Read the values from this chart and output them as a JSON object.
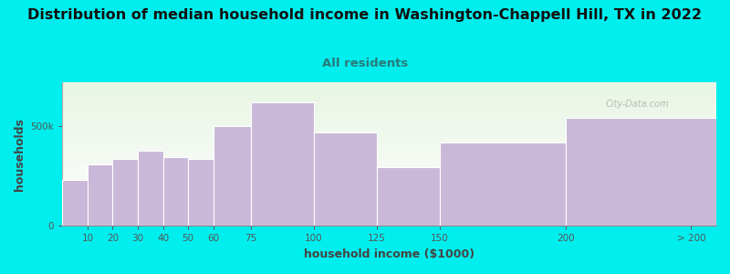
{
  "title": "Distribution of median household income in Washington-Chappell Hill, TX in 2022",
  "subtitle": "All residents",
  "xlabel": "household income ($1000)",
  "ylabel": "households",
  "background_outer": "#00EEEE",
  "background_inner_top": "#e8f5e4",
  "background_inner_bottom": "#ffffff",
  "bar_color": "#c9b8d8",
  "bar_edge_color": "#ffffff",
  "title_fontsize": 11.5,
  "title_color": "#111111",
  "subtitle_fontsize": 9.5,
  "subtitle_color": "#2a7a7a",
  "values": [
    230000,
    310000,
    335000,
    375000,
    345000,
    335000,
    500000,
    620000,
    470000,
    295000,
    420000,
    540000
  ],
  "left_edges": [
    0,
    10,
    20,
    30,
    40,
    50,
    60,
    75,
    100,
    125,
    150,
    200
  ],
  "bar_widths": [
    10,
    10,
    10,
    10,
    10,
    10,
    15,
    25,
    25,
    25,
    50,
    60
  ],
  "tick_positions": [
    10,
    20,
    30,
    40,
    50,
    60,
    75,
    100,
    125,
    150,
    200,
    250
  ],
  "tick_labels": [
    "10",
    "20",
    "30",
    "40",
    "50",
    "60",
    "75",
    "100",
    "125",
    "150",
    "200",
    "> 200"
  ],
  "xlim": [
    0,
    260
  ],
  "ylim": [
    0,
    720000
  ],
  "ytick_positions": [
    0,
    500000
  ],
  "ytick_labels": [
    "0",
    "500k"
  ],
  "watermark": "City-Data.com",
  "tick_color": "#555555",
  "label_color": "#444444",
  "label_fontsize": 9
}
